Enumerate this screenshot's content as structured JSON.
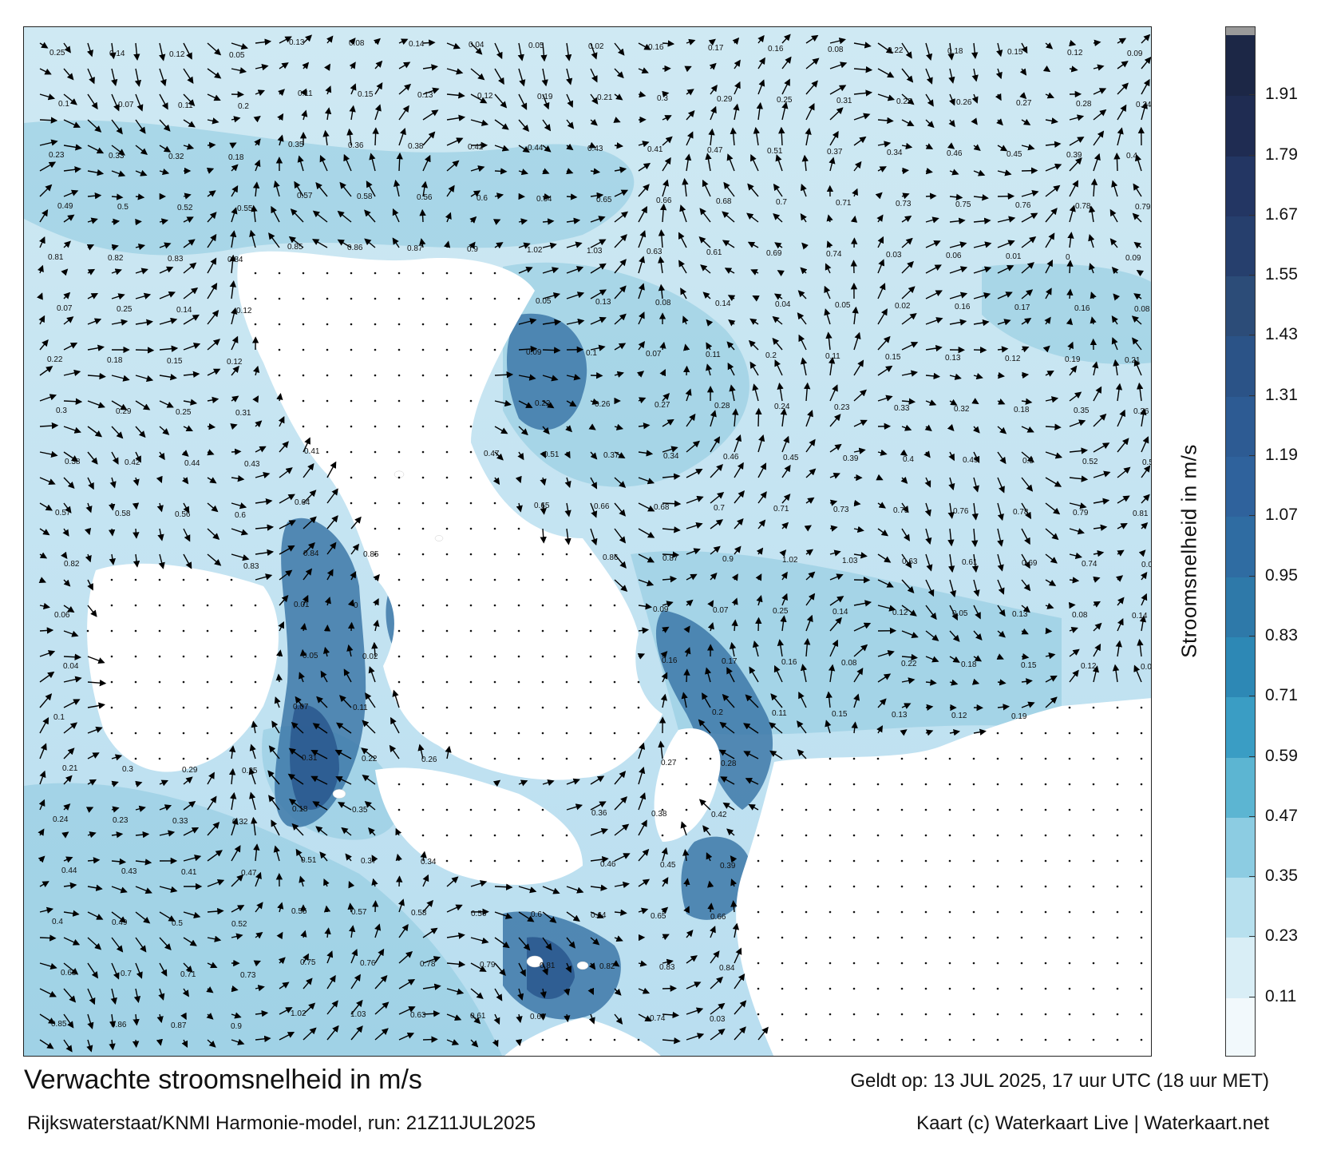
{
  "map": {
    "title": "Verwachte stroomsnelheid in m/s",
    "subtitle": "Rijkswaterstaat/KNMI Harmonie-model, run: 21Z11JUL2025",
    "valid_time": "Geldt op: 13 JUL 2025, 17 uur UTC (18 uur MET)",
    "credit": "Kaart (c) Waterkaart Live | Waterkaart.net",
    "colorbar": {
      "label": "Stroomsnelheid in m/s",
      "ticks": [
        "0.11",
        "0.23",
        "0.35",
        "0.47",
        "0.59",
        "0.71",
        "0.83",
        "0.95",
        "1.07",
        "1.19",
        "1.31",
        "1.43",
        "1.55",
        "1.67",
        "1.79",
        "1.91"
      ],
      "colors": [
        "#f2f9fc",
        "#d9eef6",
        "#b7e0ee",
        "#8ccce2",
        "#5cb5d2",
        "#3a9dc4",
        "#2d88b5",
        "#2e79a9",
        "#2f6ca2",
        "#2f629c",
        "#2d5b93",
        "#2b5387",
        "#2c4c78",
        "#263f6d",
        "#233663",
        "#1f2c52",
        "#1c2746"
      ]
    },
    "colors": {
      "land": "#ffffff",
      "water_light": "#d8eef6",
      "water_mid": "#8cc8df",
      "water_deep": "#3d78a8",
      "water_darkest": "#2b5a8f",
      "arrow": "#000000"
    },
    "speed_labels": [
      "0.25",
      "0.14",
      "0.12",
      "0.05",
      "0.13",
      "0.08",
      "0.14",
      "0.04",
      "0.05",
      "0.02",
      "0.16",
      "0.17",
      "0.16",
      "0.08",
      "0.22",
      "0.18",
      "0.15",
      "0.12",
      "0.09",
      "0.1",
      "0.07",
      "0.11",
      "0.2",
      "0.11",
      "0.15",
      "0.13",
      "0.12",
      "0.19",
      "0.21",
      "0.3",
      "0.29",
      "0.25",
      "0.31",
      "0.22",
      "0.26",
      "0.27",
      "0.28",
      "0.24",
      "0.23",
      "0.33",
      "0.32",
      "0.18",
      "0.35",
      "0.36",
      "0.38",
      "0.42",
      "0.44",
      "0.43",
      "0.41",
      "0.47",
      "0.51",
      "0.37",
      "0.34",
      "0.46",
      "0.45",
      "0.39",
      "0.4",
      "0.49",
      "0.5",
      "0.52",
      "0.55",
      "0.57",
      "0.58",
      "0.56",
      "0.6",
      "0.64",
      "0.65",
      "0.66",
      "0.68",
      "0.7",
      "0.71",
      "0.73",
      "0.75",
      "0.76",
      "0.78",
      "0.79",
      "0.81",
      "0.82",
      "0.83",
      "0.84",
      "0.85",
      "0.86",
      "0.87",
      "0.9",
      "1.02",
      "1.03",
      "0.63",
      "0.61",
      "0.69",
      "0.74",
      "0.03",
      "0.06",
      "0.01",
      "0",
      "0.09",
      "0.07"
    ]
  }
}
